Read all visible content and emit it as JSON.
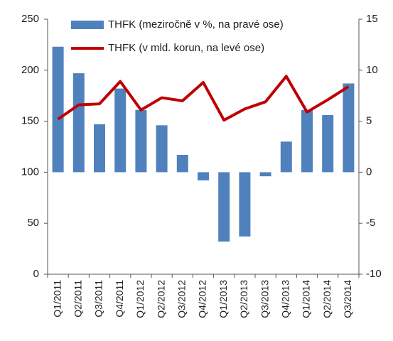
{
  "chart_data": {
    "type": "combo",
    "categories": [
      "Q1/2011",
      "Q2/2011",
      "Q3/2011",
      "Q4/2011",
      "Q1/2012",
      "Q2/2012",
      "Q3/2012",
      "Q4/2012",
      "Q1/2013",
      "Q2/2013",
      "Q3/2013",
      "Q4/2013",
      "Q1/2014",
      "Q2/2014",
      "Q3/2014"
    ],
    "series": [
      {
        "name": "THFK (meziročně v %, na pravé ose)",
        "type": "bar",
        "axis": "y2",
        "color": "#4f81bd",
        "values": [
          12.3,
          9.7,
          4.7,
          8.2,
          6.1,
          4.6,
          1.7,
          -0.8,
          -6.8,
          -6.3,
          -0.4,
          3.0,
          6.1,
          5.6,
          8.7
        ]
      },
      {
        "name": "THFK (v mld. korun, na levé ose)",
        "type": "line",
        "color": "#c00000",
        "values": [
          152,
          166,
          167,
          189,
          161,
          173,
          170,
          188,
          151,
          162,
          169,
          194,
          159,
          171,
          184
        ]
      }
    ],
    "ylim": [
      0,
      250
    ],
    "yticks": [
      0,
      50,
      100,
      150,
      200,
      250
    ],
    "y2lim": [
      -10,
      15
    ],
    "y2ticks": [
      -10,
      -5,
      0,
      5,
      10,
      15
    ],
    "grid": false,
    "legend": "top"
  }
}
